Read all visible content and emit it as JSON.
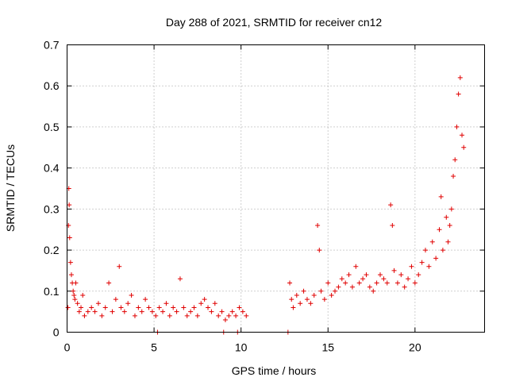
{
  "chart_data": {
    "type": "scatter",
    "title": "Day 288 of 2021, SRMTID for receiver cn12",
    "xlabel": "GPS time / hours",
    "ylabel": "SRMTID / TECUs",
    "xlim": [
      0,
      24
    ],
    "ylim": [
      0,
      0.7
    ],
    "x_ticks": [
      0,
      5,
      10,
      15,
      20
    ],
    "x_tick_labels": [
      "0",
      "5",
      "10",
      "15",
      "20"
    ],
    "y_ticks": [
      0,
      0.1,
      0.2,
      0.3,
      0.4,
      0.5,
      0.6,
      0.7
    ],
    "y_tick_labels": [
      "0",
      "0.1",
      "0.2",
      "0.3",
      "0.4",
      "0.5",
      "0.6",
      "0.7"
    ],
    "grid": true,
    "marker": "+",
    "series": [
      {
        "name": "SRMTID",
        "color": "#e00000",
        "x": [
          0.05,
          0.08,
          0.1,
          0.12,
          0.15,
          0.2,
          0.25,
          0.3,
          0.35,
          0.4,
          0.45,
          0.5,
          0.6,
          0.7,
          0.8,
          0.9,
          1.0,
          1.2,
          1.4,
          1.6,
          1.8,
          2.0,
          2.2,
          2.4,
          2.6,
          2.8,
          3.0,
          3.1,
          3.3,
          3.5,
          3.7,
          3.9,
          4.1,
          4.3,
          4.5,
          4.7,
          4.9,
          5.1,
          5.3,
          5.5,
          5.7,
          5.9,
          6.1,
          6.3,
          6.5,
          6.7,
          6.9,
          7.1,
          7.3,
          7.5,
          7.7,
          7.9,
          8.1,
          8.3,
          8.5,
          8.7,
          8.9,
          9.1,
          9.3,
          9.5,
          9.7,
          9.9,
          10.1,
          10.3,
          5.2,
          9.0,
          9.8,
          12.7,
          12.8,
          12.9,
          13.0,
          13.2,
          13.4,
          13.6,
          13.8,
          14.0,
          14.2,
          14.4,
          14.5,
          14.6,
          14.8,
          15.0,
          15.2,
          15.4,
          15.6,
          15.8,
          16.0,
          16.2,
          16.4,
          16.6,
          16.8,
          17.0,
          17.2,
          17.4,
          17.6,
          17.8,
          18.0,
          18.2,
          18.4,
          18.6,
          18.7,
          18.8,
          19.0,
          19.2,
          19.4,
          19.6,
          19.8,
          20.0,
          20.2,
          20.4,
          20.6,
          20.8,
          21.0,
          21.2,
          21.4,
          21.5,
          21.6,
          21.8,
          21.9,
          22.0,
          22.1,
          22.2,
          22.3,
          22.4,
          22.5,
          22.6,
          22.7,
          22.8
        ],
        "y": [
          0.06,
          0.26,
          0.35,
          0.31,
          0.23,
          0.17,
          0.14,
          0.12,
          0.1,
          0.09,
          0.08,
          0.12,
          0.07,
          0.05,
          0.06,
          0.09,
          0.04,
          0.05,
          0.06,
          0.05,
          0.07,
          0.04,
          0.06,
          0.12,
          0.05,
          0.08,
          0.16,
          0.06,
          0.05,
          0.07,
          0.09,
          0.04,
          0.06,
          0.05,
          0.08,
          0.06,
          0.05,
          0.04,
          0.06,
          0.05,
          0.07,
          0.04,
          0.06,
          0.05,
          0.13,
          0.06,
          0.04,
          0.05,
          0.06,
          0.04,
          0.07,
          0.08,
          0.06,
          0.05,
          0.07,
          0.04,
          0.05,
          0.03,
          0.04,
          0.05,
          0.04,
          0.06,
          0.05,
          0.04,
          0.0,
          0.0,
          0.0,
          0.0,
          0.12,
          0.08,
          0.06,
          0.09,
          0.07,
          0.1,
          0.08,
          0.07,
          0.09,
          0.26,
          0.2,
          0.1,
          0.08,
          0.12,
          0.09,
          0.1,
          0.11,
          0.13,
          0.12,
          0.14,
          0.11,
          0.16,
          0.12,
          0.13,
          0.14,
          0.11,
          0.1,
          0.12,
          0.14,
          0.13,
          0.12,
          0.31,
          0.26,
          0.15,
          0.12,
          0.14,
          0.11,
          0.13,
          0.16,
          0.12,
          0.14,
          0.17,
          0.2,
          0.16,
          0.22,
          0.18,
          0.25,
          0.33,
          0.2,
          0.28,
          0.22,
          0.26,
          0.3,
          0.38,
          0.42,
          0.5,
          0.58,
          0.62,
          0.48,
          0.45
        ]
      }
    ]
  }
}
